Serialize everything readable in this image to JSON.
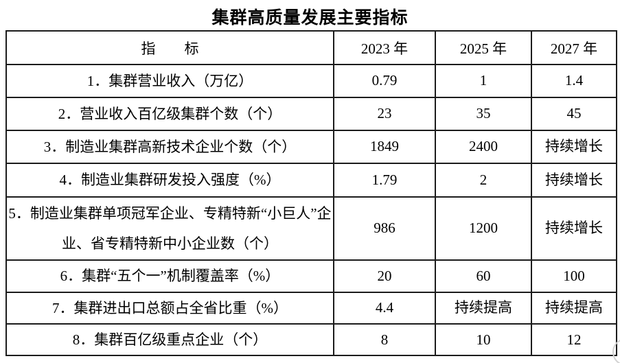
{
  "page": {
    "title": "集群高质量发展主要指标"
  },
  "table": {
    "columns": [
      "指　　标",
      "2023 年",
      "2025 年",
      "2027 年"
    ],
    "rows": [
      {
        "indicator": "1．集群营业收入（万亿）",
        "v2023": "0.79",
        "v2025": "1",
        "v2027": "1.4"
      },
      {
        "indicator": "2．营业收入百亿级集群个数（个）",
        "v2023": "23",
        "v2025": "35",
        "v2027": "45"
      },
      {
        "indicator": "3．制造业集群高新技术企业个数（个）",
        "v2023": "1849",
        "v2025": "2400",
        "v2027": "持续增长"
      },
      {
        "indicator": "4．制造业集群研发投入强度（%）",
        "v2023": "1.79",
        "v2025": "2",
        "v2027": "持续增长"
      },
      {
        "indicator": "5．制造业集群单项冠军企业、专精特新“小巨人”企业、省专精特新中小企业数（个）",
        "v2023": "986",
        "v2025": "1200",
        "v2027": "持续增长"
      },
      {
        "indicator": "6．集群“五个一”机制覆盖率（%）",
        "v2023": "20",
        "v2025": "60",
        "v2027": "100"
      },
      {
        "indicator": "7．集群进出口总额占全省比重（%）",
        "v2023": "4.4",
        "v2025": "持续提高",
        "v2027": "持续提高"
      },
      {
        "indicator": "8．集群百亿级重点企业（个）",
        "v2023": "8",
        "v2025": "10",
        "v2027": "12"
      }
    ]
  },
  "colors": {
    "border": "#1b1b1b",
    "text": "#000000",
    "background": "#ffffff"
  }
}
